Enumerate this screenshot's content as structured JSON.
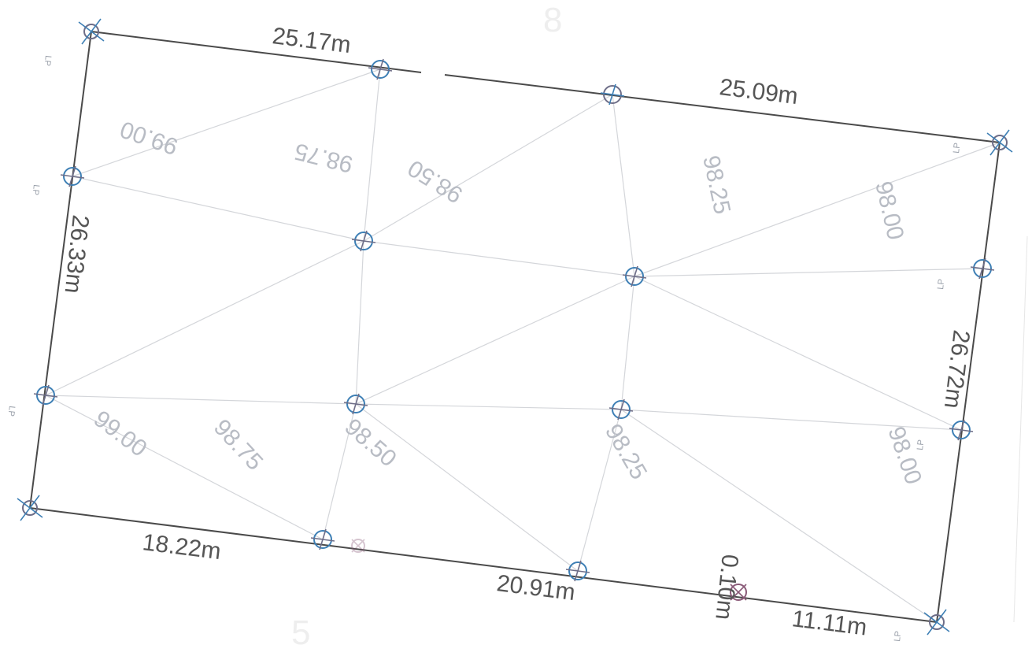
{
  "colors": {
    "boundary": "#4a4a4a",
    "marker_blue": "#3d7fb5",
    "marker_gray": "#6e6e88",
    "marker_mauve": "#8a5a78",
    "contour_text": "#b8bcc4",
    "dimension_text": "#555555"
  },
  "dimensions": {
    "top_left": "25.17m",
    "top_right": "25.09m",
    "left": "26.33m",
    "right": "26.72m",
    "bottom_left": "18.22m",
    "bottom_mid": "20.91m",
    "bottom_short": "0.10m",
    "bottom_right": "11.11m"
  },
  "contours": {
    "c1": "99.00",
    "c2": "98.75",
    "c3": "98.50",
    "c4": "98.25",
    "c5": "98.00",
    "c6": "99.00",
    "c7": "98.75",
    "c8": "98.50",
    "c9": "98.25",
    "c10": "98.00"
  },
  "point_tags": [
    "LP",
    "LP",
    "LP",
    "LP",
    "LP",
    "LP",
    "LP"
  ],
  "background_lot_numbers": [
    "8",
    "5"
  ],
  "icons": {
    "survey_marker": "survey-marker-icon"
  }
}
